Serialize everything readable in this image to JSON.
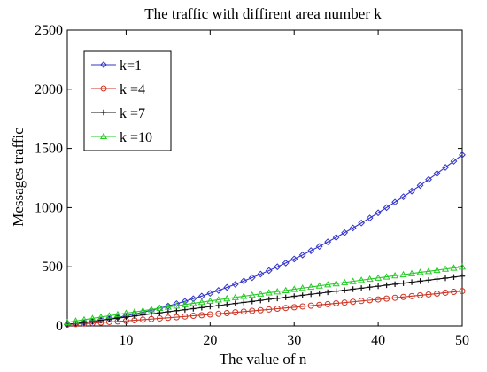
{
  "chart_data": {
    "type": "line",
    "title": "The traffic with diffirent area number k",
    "xlabel": "The value of n",
    "ylabel": "Messages traffic",
    "xlim": [
      3,
      50
    ],
    "ylim": [
      0,
      2500
    ],
    "xticks": [
      10,
      20,
      30,
      40,
      50
    ],
    "yticks": [
      0,
      500,
      1000,
      1500,
      2000,
      2500
    ],
    "grid": false,
    "legend_position": "top-left",
    "x": [
      3,
      4,
      5,
      6,
      7,
      8,
      9,
      10,
      11,
      12,
      13,
      14,
      15,
      16,
      17,
      18,
      19,
      20,
      21,
      22,
      23,
      24,
      25,
      26,
      27,
      28,
      29,
      30,
      31,
      32,
      33,
      34,
      35,
      36,
      37,
      38,
      39,
      40,
      41,
      42,
      43,
      44,
      45,
      46,
      47,
      48,
      49,
      50
    ],
    "series": [
      {
        "name": "k=1",
        "color": "#3333cc",
        "marker": "diamond",
        "values": [
          13,
          20,
          28,
          38,
          48,
          60,
          72,
          86,
          100,
          116,
          132,
          150,
          168,
          188,
          208,
          230,
          252,
          276,
          300,
          326,
          352,
          380,
          408,
          438,
          468,
          500,
          532,
          566,
          600,
          636,
          672,
          710,
          748,
          788,
          828,
          870,
          912,
          956,
          1000,
          1046,
          1092,
          1140,
          1188,
          1238,
          1288,
          1340,
          1392,
          1446
        ]
      },
      {
        "name": "k =4",
        "color": "#cc3322",
        "marker": "circle",
        "values": [
          12,
          16,
          20,
          24,
          29,
          34,
          38,
          43,
          48,
          53,
          58,
          64,
          69,
          74,
          80,
          86,
          91,
          97,
          103,
          109,
          115,
          121,
          127,
          133,
          139,
          146,
          152,
          158,
          165,
          171,
          178,
          184,
          191,
          197,
          204,
          211,
          218,
          224,
          231,
          238,
          245,
          252,
          259,
          266,
          273,
          281,
          288,
          295
        ]
      },
      {
        "name": "k =7",
        "color": "#111111",
        "marker": "plus",
        "values": [
          13,
          22,
          30,
          39,
          48,
          57,
          66,
          75,
          84,
          93,
          102,
          111,
          120,
          129,
          137,
          146,
          155,
          164,
          172,
          181,
          190,
          199,
          207,
          216,
          225,
          233,
          242,
          251,
          259,
          268,
          276,
          285,
          294,
          302,
          311,
          319,
          328,
          336,
          345,
          353,
          362,
          370,
          379,
          387,
          396,
          404,
          413,
          421
        ]
      },
      {
        "name": "k =10",
        "color": "#22cc22",
        "marker": "triangle",
        "values": [
          30,
          42,
          53,
          64,
          75,
          86,
          97,
          108,
          118,
          129,
          139,
          150,
          160,
          170,
          181,
          191,
          201,
          211,
          221,
          231,
          241,
          251,
          261,
          271,
          281,
          290,
          300,
          310,
          320,
          329,
          339,
          349,
          358,
          368,
          377,
          387,
          396,
          406,
          415,
          425,
          434,
          443,
          453,
          462,
          471,
          481,
          490,
          499
        ]
      }
    ]
  }
}
